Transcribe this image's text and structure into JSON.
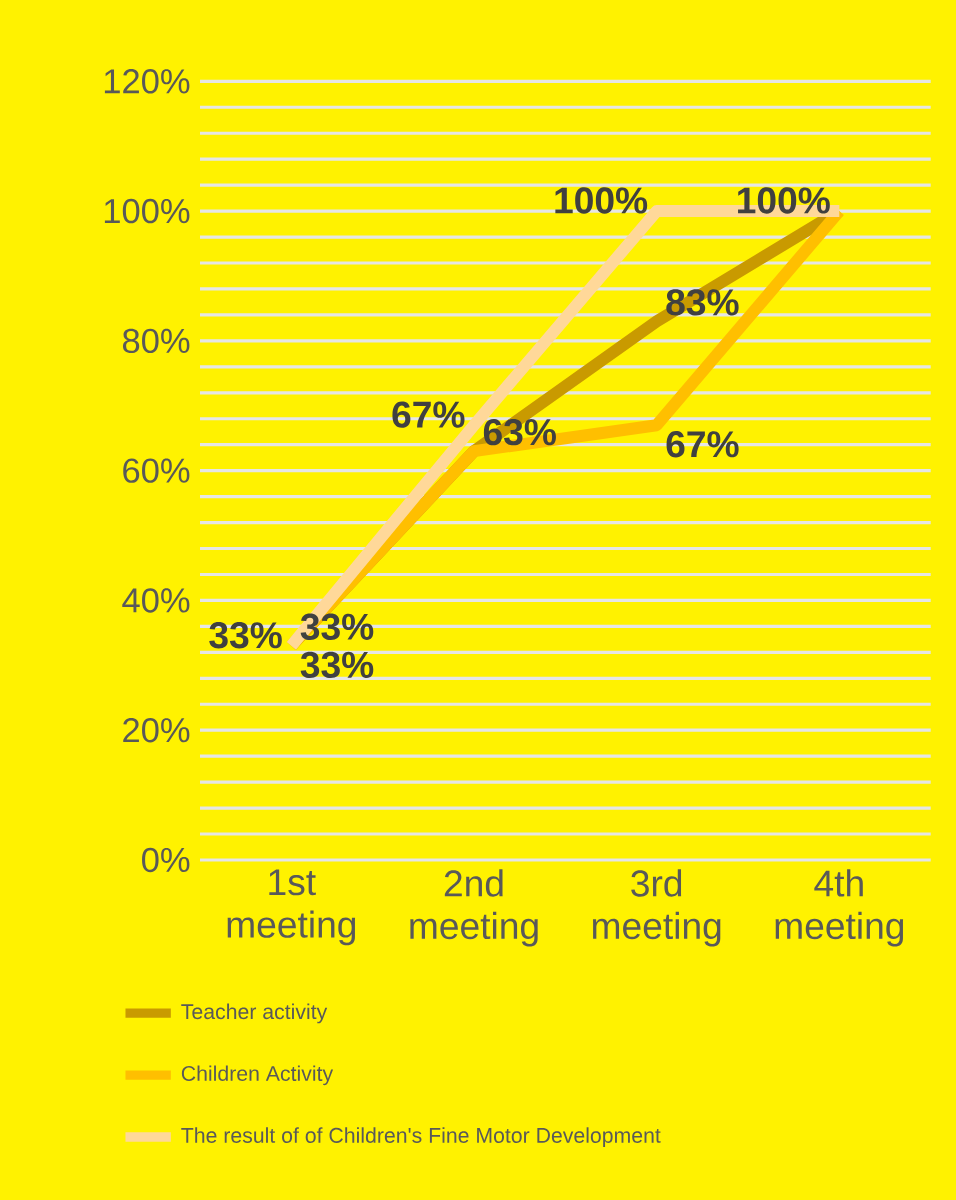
{
  "chart_data": {
    "type": "line",
    "categories": [
      "1st meeting",
      "2nd meeting",
      "3rd meeting",
      "4th meeting"
    ],
    "series": [
      {
        "name": "Teacher activity",
        "color": "#c99a00",
        "values": [
          33,
          63,
          83,
          100
        ],
        "value_labels": [
          "33%",
          "63%",
          "83%",
          null
        ]
      },
      {
        "name": "Children Activity",
        "color": "#ffbf00",
        "values": [
          33,
          63,
          67,
          100
        ],
        "value_labels": [
          "33%",
          null,
          "67%",
          null
        ]
      },
      {
        "name": "The result of  of Children's Fine Motor Development",
        "color": "#ffd899",
        "values": [
          33,
          67,
          100,
          100
        ],
        "value_labels": [
          "33%",
          "67%",
          "100%",
          "100%"
        ]
      }
    ],
    "ylim": [
      0,
      120
    ],
    "yticks": [
      {
        "value": 0,
        "label": "0%"
      },
      {
        "value": 20,
        "label": "20%"
      },
      {
        "value": 40,
        "label": "40%"
      },
      {
        "value": 60,
        "label": "60%"
      },
      {
        "value": 80,
        "label": "80%"
      },
      {
        "value": 100,
        "label": "100%"
      },
      {
        "value": 120,
        "label": "120%"
      }
    ],
    "grid": "y",
    "legend": "bottom",
    "marker": "none",
    "line_style": "solid"
  }
}
